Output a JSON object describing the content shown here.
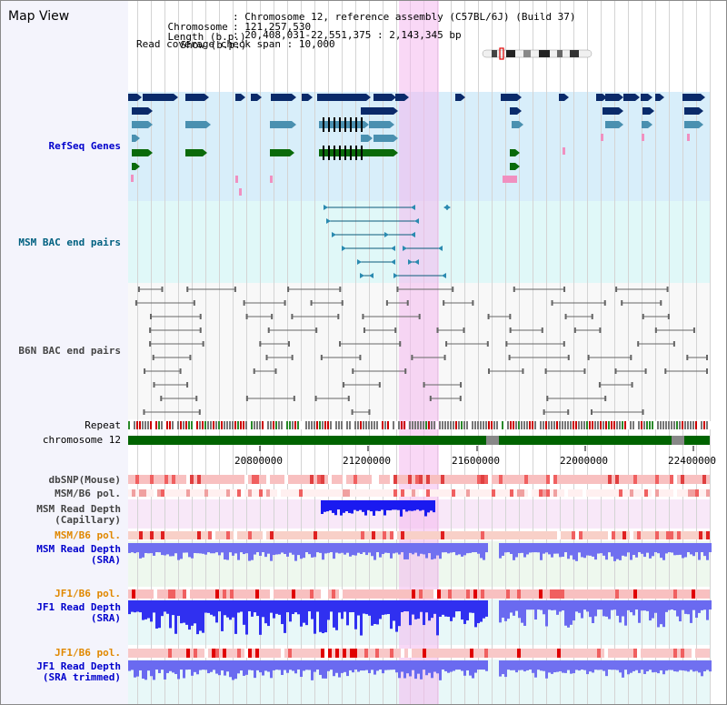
{
  "app": {
    "title": "Map View"
  },
  "info": {
    "chromosome_label": "Chromosome",
    "chromosome_value": "Chromosome 12, reference assembly (C57BL/6J) (Build 37)",
    "length_label": "Length (b.p.)",
    "length_value": "121,257,530",
    "show_label": "Show (b.p.)",
    "show_value": "20,408,031-22,551,375 : 2,143,345 bp",
    "coverage_label": "Read coverage check span",
    "coverage_value": "10,000"
  },
  "tracks": {
    "refseq": "RefSeq Genes",
    "msm_bac": "MSM BAC end pairs",
    "b6n_bac": "B6N BAC end pairs",
    "repeat": "Repeat",
    "chromosome": "chromosome 12",
    "dbsnp": "dbSNP(Mouse)",
    "msm_b6_pol_1": "MSM/B6 pol.",
    "msm_read_depth_cap": "MSM Read Depth\n(Capillary)",
    "msm_b6_pol_2": "MSM/B6 pol.",
    "msm_read_depth_sra": "MSM Read Depth\n(SRA)",
    "jf1_b6_pol_1": "JF1/B6 pol.",
    "jf1_read_depth_sra": "JF1 Read Depth\n(SRA)",
    "jf1_b6_pol_2": "JF1/B6 pol.",
    "jf1_read_depth_trim": "JF1 Read Depth\n(SRA trimmed)"
  },
  "axis": {
    "ticks": [
      "20800000",
      "21200000",
      "21600000",
      "22000000",
      "22400000"
    ]
  },
  "colors": {
    "highlight": "#f4b8ee",
    "refseq_bg": "#d8eefa",
    "bac_bg": "#e0f8f8",
    "label_blue": "#0000cc",
    "label_teal": "#006080",
    "label_orange": "#e08800",
    "label_gray": "#444444",
    "depth_blue": "#2828f0",
    "depth_light": "#7878f0",
    "chromosome_green": "#006400"
  }
}
